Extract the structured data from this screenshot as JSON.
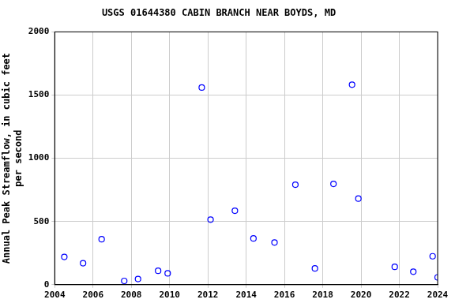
{
  "chart_data": {
    "type": "scatter",
    "title": "USGS 01644380 CABIN BRANCH NEAR BOYDS, MD",
    "ylabel": [
      "Annual Peak Streamflow, in cubic feet",
      "per second"
    ],
    "x": [
      2004.5,
      2005.48,
      2006.45,
      2007.63,
      2008.35,
      2009.4,
      2009.9,
      2011.68,
      2012.14,
      2013.41,
      2014.38,
      2015.48,
      2016.57,
      2017.59,
      2018.56,
      2019.53,
      2019.86,
      2021.76,
      2022.73,
      2023.74,
      2024.0
    ],
    "values": [
      220,
      170,
      360,
      30,
      45,
      110,
      90,
      1560,
      515,
      585,
      366,
      334,
      791,
      129,
      797,
      1582,
      681,
      141,
      103,
      225,
      58
    ],
    "color": "#0000ff",
    "marker": "circle",
    "xlim": [
      2004,
      2024
    ],
    "xticks": [
      2004,
      2006,
      2008,
      2010,
      2012,
      2014,
      2016,
      2018,
      2020,
      2022,
      2024
    ],
    "ylim": [
      0,
      2000
    ],
    "yticks": [
      0,
      500,
      1000,
      1500,
      2000
    ],
    "grid": true
  }
}
